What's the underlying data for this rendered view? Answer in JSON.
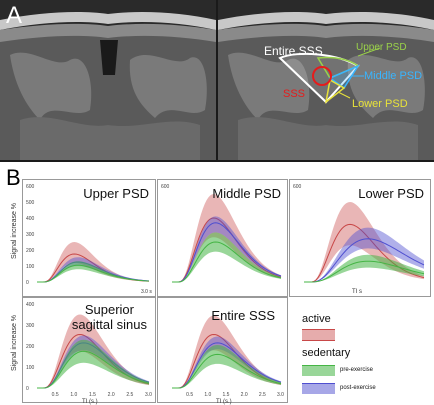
{
  "panel_a": {
    "label": "A",
    "annotations": {
      "entire": "Entire SSS",
      "upper": "Upper PSD",
      "middle": "Middle PSD",
      "sss": "SSS",
      "lower": "Lower PSD"
    },
    "colors": {
      "entire": "#ffffff",
      "upper": "#9ad14a",
      "middle": "#39b5ff",
      "sss": "#e51c1c",
      "lower": "#e8e23a"
    }
  },
  "panel_b": {
    "label": "B",
    "ylabel": "Signal increase %",
    "xlabel_ti_s_paren": "TI (s.)",
    "xlabel_ti_s": "TI s",
    "x_end_label": "3.0 s",
    "legend": {
      "active": "active",
      "sedentary": "sedentary",
      "pre": "pre-exercise",
      "post": "post-exercise"
    },
    "colors": {
      "active": "#c84848",
      "pre": "#45b545",
      "post": "#4f4fd0"
    }
  },
  "chart_data": [
    {
      "type": "area",
      "title": "Upper PSD",
      "ylim": [
        0,
        600
      ],
      "xlim": [
        0,
        3
      ],
      "yticks": [
        0,
        100,
        200,
        300,
        400,
        500,
        600
      ],
      "xticks": [],
      "series": [
        {
          "name": "active",
          "peak_x": 1.0,
          "peak_y": 175,
          "band": [
            75,
            55
          ]
        },
        {
          "name": "post-exercise",
          "peak_x": 1.1,
          "peak_y": 125,
          "band": [
            30,
            25
          ]
        },
        {
          "name": "pre-exercise",
          "peak_x": 1.1,
          "peak_y": 105,
          "band": [
            25,
            25
          ]
        }
      ]
    },
    {
      "type": "area",
      "title": "Middle PSD",
      "ylim": [
        0,
        600
      ],
      "xlim": [
        0,
        3
      ],
      "yticks": [
        600
      ],
      "xticks": [],
      "series": [
        {
          "name": "active",
          "peak_x": 1.15,
          "peak_y": 400,
          "band": [
            150,
            120
          ]
        },
        {
          "name": "post-exercise",
          "peak_x": 1.2,
          "peak_y": 370,
          "band": [
            40,
            60
          ]
        },
        {
          "name": "pre-exercise",
          "peak_x": 1.2,
          "peak_y": 250,
          "band": [
            60,
            60
          ]
        }
      ]
    },
    {
      "type": "area",
      "title": "Lower PSD",
      "ylim": [
        0,
        600
      ],
      "xlim": [
        0,
        3
      ],
      "yticks": [
        600
      ],
      "xticks": [],
      "series": [
        {
          "name": "active",
          "peak_x": 1.15,
          "peak_y": 360,
          "band": [
            140,
            130
          ]
        },
        {
          "name": "post-exercise",
          "peak_x": 1.6,
          "peak_y": 270,
          "band": [
            70,
            60
          ]
        },
        {
          "name": "pre-exercise",
          "peak_x": 1.6,
          "peak_y": 130,
          "band": [
            40,
            40
          ]
        }
      ]
    },
    {
      "type": "area",
      "title": "Superior sagittal sinus",
      "ylim": [
        0,
        400
      ],
      "xlim": [
        0,
        3
      ],
      "yticks": [
        0,
        100,
        200,
        300,
        400
      ],
      "xticks": [
        "0.5",
        "1.0",
        "1.5",
        "2.0",
        "2.5",
        "3.0"
      ],
      "series": [
        {
          "name": "active",
          "peak_x": 1.15,
          "peak_y": 255,
          "band": [
            95,
            80
          ]
        },
        {
          "name": "post-exercise",
          "peak_x": 1.25,
          "peak_y": 215,
          "band": [
            35,
            35
          ]
        },
        {
          "name": "pre-exercise",
          "peak_x": 1.25,
          "peak_y": 175,
          "band": [
            55,
            55
          ]
        }
      ]
    },
    {
      "type": "area",
      "title": "Entire SSS",
      "ylim": [
        0,
        400
      ],
      "xlim": [
        0,
        3
      ],
      "yticks": [],
      "xticks": [
        "0.5",
        "1.0",
        "1.5",
        "2.0",
        "2.5",
        "3.0"
      ],
      "series": [
        {
          "name": "active",
          "peak_x": 1.15,
          "peak_y": 255,
          "band": [
            90,
            75
          ]
        },
        {
          "name": "post-exercise",
          "peak_x": 1.25,
          "peak_y": 215,
          "band": [
            30,
            30
          ]
        },
        {
          "name": "pre-exercise",
          "peak_x": 1.25,
          "peak_y": 160,
          "band": [
            45,
            45
          ]
        }
      ]
    }
  ]
}
